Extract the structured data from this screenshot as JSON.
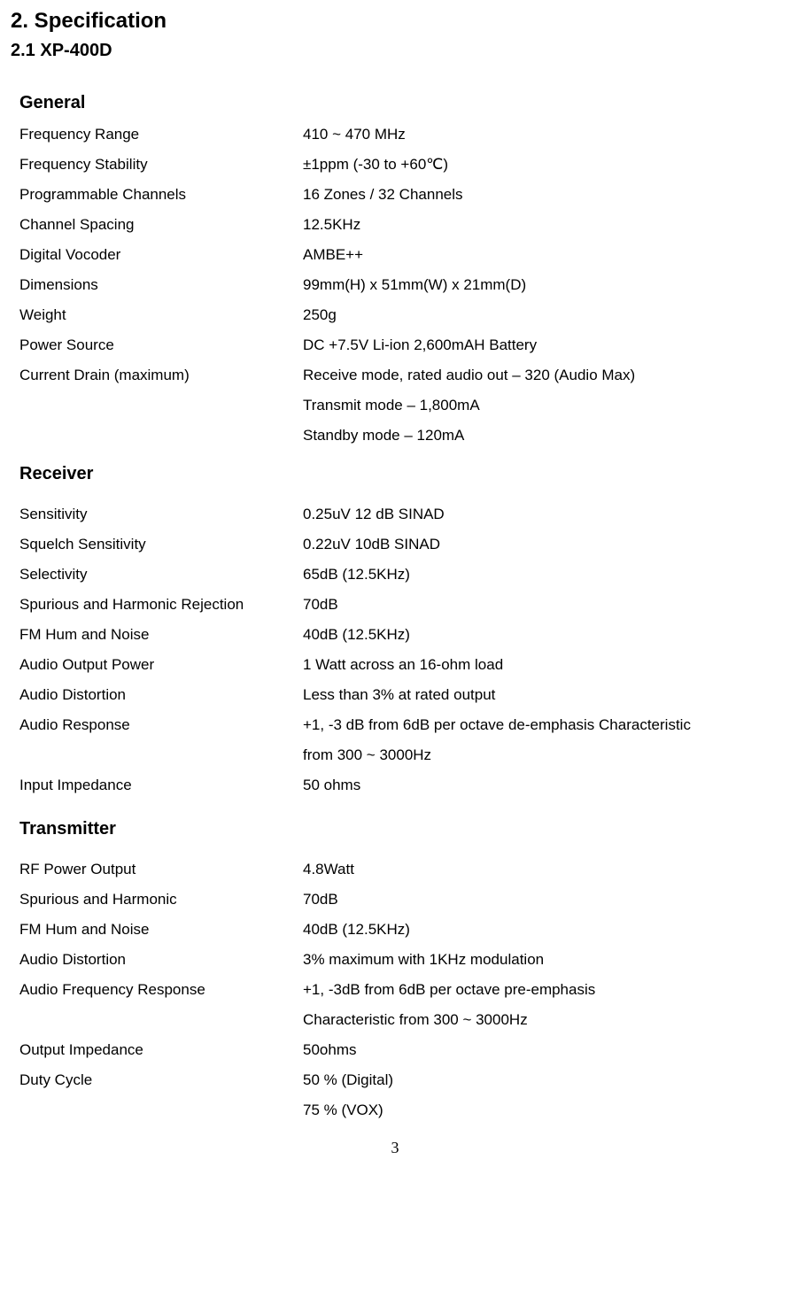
{
  "headings": {
    "main": "2. Specification",
    "sub": "2.1 XP-400D"
  },
  "sections": {
    "general": {
      "title": "General",
      "rows": [
        {
          "label": "Frequency Range",
          "values": [
            "410 ~ 470 MHz"
          ]
        },
        {
          "label": "Frequency Stability",
          "values": [
            "±1ppm (-30 to +60℃)"
          ]
        },
        {
          "label": "Programmable Channels",
          "values": [
            "16 Zones / 32 Channels"
          ]
        },
        {
          "label": "Channel Spacing",
          "values": [
            "12.5KHz"
          ]
        },
        {
          "label": "Digital Vocoder",
          "values": [
            "AMBE++"
          ]
        },
        {
          "label": "Dimensions",
          "values": [
            "99mm(H) x 51mm(W) x 21mm(D)"
          ]
        },
        {
          "label": "Weight",
          "values": [
            "250g"
          ]
        },
        {
          "label": "Power Source",
          "values": [
            "DC +7.5V Li-ion 2,600mAH Battery"
          ]
        },
        {
          "label": "Current Drain (maximum)",
          "values": [
            "Receive mode, rated audio out – 320 (Audio Max)",
            "Transmit mode – 1,800mA",
            "Standby mode – 120mA"
          ]
        }
      ]
    },
    "receiver": {
      "title": "Receiver",
      "rows": [
        {
          "label": "Sensitivity",
          "values": [
            "0.25uV 12 dB SINAD"
          ]
        },
        {
          "label": "Squelch Sensitivity",
          "values": [
            "0.22uV 10dB SINAD"
          ]
        },
        {
          "label": "Selectivity",
          "values": [
            "65dB (12.5KHz)"
          ]
        },
        {
          "label": "Spurious and Harmonic Rejection",
          "values": [
            "70dB"
          ]
        },
        {
          "label": "FM Hum and Noise",
          "values": [
            "40dB (12.5KHz)"
          ]
        },
        {
          "label": "Audio Output Power",
          "values": [
            "1 Watt across an 16-ohm load"
          ]
        },
        {
          "label": "Audio Distortion",
          "values": [
            "Less than 3% at rated output"
          ]
        },
        {
          "label": "Audio Response",
          "values": [
            "+1, -3 dB from 6dB per octave de-emphasis Characteristic",
            "from 300 ~ 3000Hz"
          ]
        },
        {
          "label": "Input Impedance",
          "values": [
            "50 ohms"
          ]
        }
      ]
    },
    "transmitter": {
      "title": "Transmitter",
      "rows": [
        {
          "label": "RF Power Output",
          "values": [
            "4.8Watt"
          ]
        },
        {
          "label": "Spurious and Harmonic",
          "values": [
            "70dB"
          ]
        },
        {
          "label": "FM Hum and Noise",
          "values": [
            "40dB (12.5KHz)"
          ]
        },
        {
          "label": "Audio Distortion",
          "values": [
            "3% maximum with 1KHz modulation"
          ]
        },
        {
          "label": "Audio Frequency Response",
          "values": [
            "+1, -3dB from 6dB per octave pre-emphasis",
            "Characteristic from 300 ~ 3000Hz"
          ]
        },
        {
          "label": "Output Impedance",
          "values": [
            "50ohms"
          ]
        },
        {
          "label": "Duty Cycle",
          "values": [
            "50 % (Digital)",
            "75 % (VOX)"
          ]
        }
      ]
    }
  },
  "page_number": "3"
}
